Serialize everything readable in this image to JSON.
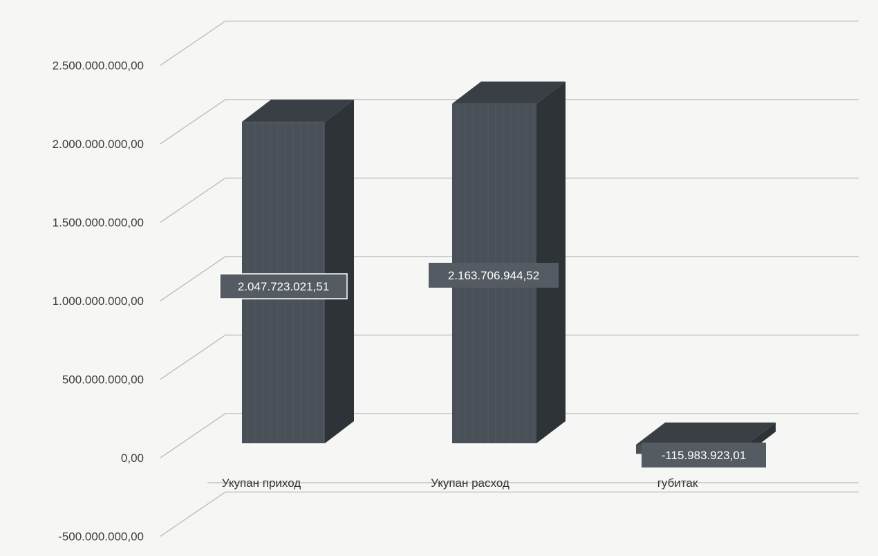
{
  "chart_data": {
    "type": "bar",
    "three_d": true,
    "categories": [
      "Укупан приход",
      "Укупан расход",
      "губитак"
    ],
    "values": [
      2047723021.51,
      2163706944.52,
      -115983923.01
    ],
    "data_labels": [
      "2.047.723.021,51",
      "2.163.706.944,52",
      "-115.983.923,01"
    ],
    "ylim": [
      -500000000,
      2500000000
    ],
    "y_ticks": [
      -500000000,
      0,
      500000000,
      1000000000,
      1500000000,
      2000000000,
      2500000000
    ],
    "y_tick_labels": [
      "-500.000.000,00",
      "0,00",
      "500.000.000,00",
      "1.000.000.000,00",
      "1.500.000.000,00",
      "2.000.000.000,00",
      "2.500.000.000,00"
    ],
    "grid": true,
    "legend": "none",
    "colors": {
      "bar_front": "#4a5058",
      "bar_side": "#2e3338",
      "bar_top": "#3a3f45",
      "grid": "#b8b8b8",
      "label_bg": "#555b62"
    }
  }
}
